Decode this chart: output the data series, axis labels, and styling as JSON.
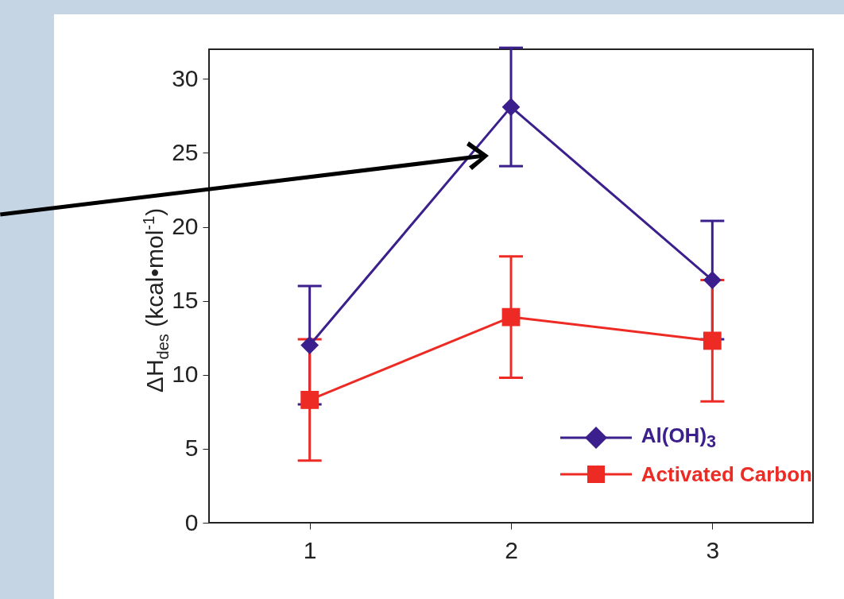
{
  "chart_data": {
    "type": "line",
    "ylabel": "ΔH$_{des}$ (kcal•mol$^{-1}$)",
    "x": [
      1,
      2,
      3
    ],
    "xlim": [
      0.5,
      3.5
    ],
    "xticks": [
      1,
      2,
      3
    ],
    "ylim": [
      0,
      32
    ],
    "yticks": [
      0,
      5,
      10,
      15,
      20,
      25,
      30
    ],
    "grid": false,
    "legend": "bottom right",
    "line_style": "solid",
    "series": [
      {
        "name": "Al(OH)$_{3}$",
        "color": "#3b1f8c",
        "marker": "diamond",
        "values": [
          12,
          28.1,
          16.4
        ],
        "errors": [
          4,
          4,
          4
        ]
      },
      {
        "name": "Activated Carbon",
        "color": "#ee2a24",
        "marker": "square",
        "values": [
          8.3,
          13.9,
          12.3
        ],
        "errors": [
          4.1,
          4.1,
          4.1
        ]
      }
    ]
  }
}
